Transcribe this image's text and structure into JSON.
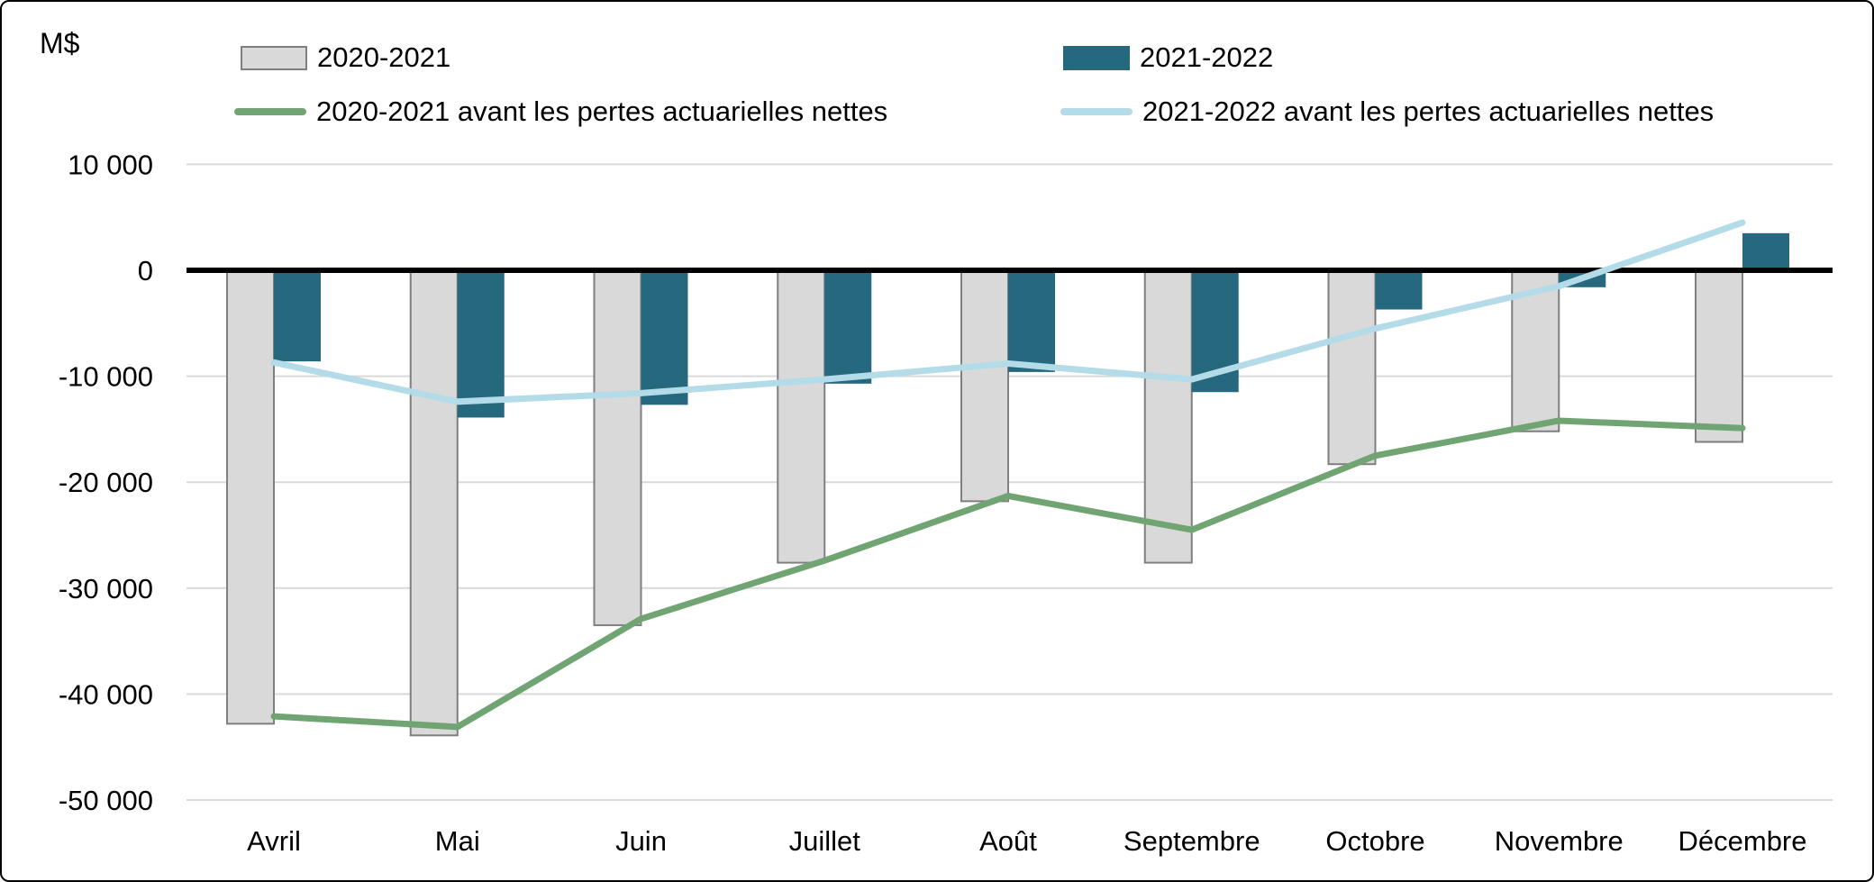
{
  "chart": {
    "unit": "M$"
  },
  "colors": {
    "bar_2020_2021": "#D9D9D9",
    "bar_2020_2021_border": "#7F7F7F",
    "bar_2021_2022": "#26697E",
    "line_2020_2021": "#70A573",
    "line_2021_2022": "#B3DBE8",
    "gridline": "#D9D9D9",
    "zero_line": "#000000",
    "text": "#000000"
  },
  "legend": {
    "items": [
      {
        "label": "2020-2021",
        "swatch": "bar",
        "color_key": "bar_2020_2021"
      },
      {
        "label": "2021-2022",
        "swatch": "bar",
        "color_key": "bar_2021_2022"
      },
      {
        "label": "2020-2021 avant les pertes actuarielles nettes",
        "swatch": "line",
        "color_key": "line_2020_2021"
      },
      {
        "label": "2021-2022 avant les pertes actuarielles nettes",
        "swatch": "line",
        "color_key": "line_2021_2022"
      }
    ]
  },
  "chart_data": {
    "type": "bar+line",
    "title": "",
    "ylabel": "M$",
    "xlabel": "",
    "categories": [
      "Avril",
      "Mai",
      "Juin",
      "Juillet",
      "Août",
      "Septembre",
      "Octobre",
      "Novembre",
      "Décembre"
    ],
    "series": [
      {
        "name": "2020-2021",
        "type": "bar",
        "values": [
          -42800,
          -43900,
          -33500,
          -27600,
          -21800,
          -27600,
          -18300,
          -15200,
          -16200
        ]
      },
      {
        "name": "2021-2022",
        "type": "bar",
        "values": [
          -8600,
          -13900,
          -12700,
          -10700,
          -9600,
          -11500,
          -3700,
          -1600,
          3500
        ]
      },
      {
        "name": "2020-2021 avant les pertes actuarielles nettes",
        "type": "line",
        "values": [
          -42100,
          -43100,
          -32900,
          -27400,
          -21300,
          -24500,
          -17500,
          -14200,
          -14900
        ]
      },
      {
        "name": "2021-2022 avant les pertes actuarielles nettes",
        "type": "line",
        "values": [
          -8700,
          -12400,
          -11600,
          -10300,
          -8800,
          -10300,
          -5500,
          -1500,
          4500
        ]
      }
    ],
    "ylim": [
      -50000,
      10000
    ],
    "ytick_interval": 10000,
    "ytick_values": [
      10000,
      0,
      -10000,
      -20000,
      -30000,
      -40000,
      -50000
    ],
    "ytick_labels": [
      "10 000",
      "0",
      "-10 000",
      "-20 000",
      "-30 000",
      "-40 000",
      "-50 000"
    ],
    "grid": true,
    "legend_position": "top"
  }
}
